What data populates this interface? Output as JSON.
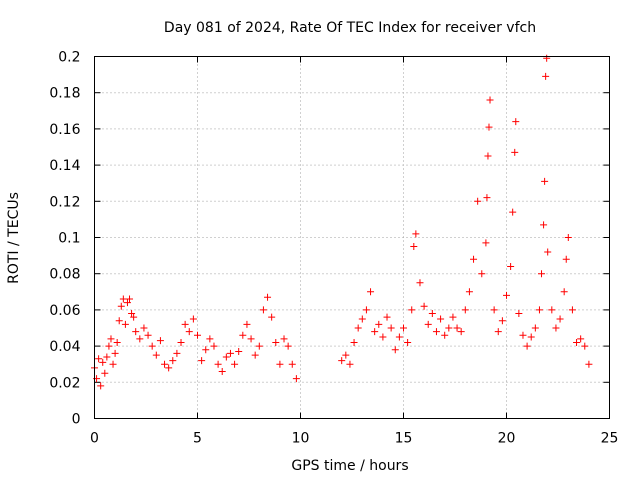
{
  "chart_data": {
    "type": "scatter",
    "title": "Day 081 of 2024, Rate Of TEC Index for receiver vfch",
    "xlabel": "GPS time / hours",
    "ylabel": "ROTI / TECUs",
    "xlim": [
      0,
      25
    ],
    "ylim": [
      0,
      0.2
    ],
    "xticks": [
      0,
      5,
      10,
      15,
      20,
      25
    ],
    "yticks": [
      0,
      0.02,
      0.04,
      0.06,
      0.08,
      0.1,
      0.12,
      0.14,
      0.16,
      0.18,
      0.2
    ],
    "xtick_labels": [
      "0",
      "5",
      "10",
      "15",
      "20",
      "25"
    ],
    "ytick_labels": [
      "0",
      "0.02",
      "0.04",
      "0.06",
      "0.08",
      "0.1",
      "0.12",
      "0.14",
      "0.16",
      "0.18",
      "0.2"
    ],
    "grid": true,
    "marker": "+",
    "color": "#ff0000",
    "series": [
      {
        "name": "ROTI",
        "points": [
          [
            0.0,
            0.028
          ],
          [
            0.1,
            0.022
          ],
          [
            0.2,
            0.033
          ],
          [
            0.3,
            0.018
          ],
          [
            0.4,
            0.031
          ],
          [
            0.5,
            0.025
          ],
          [
            0.6,
            0.034
          ],
          [
            0.7,
            0.04
          ],
          [
            0.8,
            0.044
          ],
          [
            0.9,
            0.03
          ],
          [
            1.0,
            0.036
          ],
          [
            1.1,
            0.042
          ],
          [
            1.2,
            0.054
          ],
          [
            1.3,
            0.062
          ],
          [
            1.4,
            0.066
          ],
          [
            1.5,
            0.052
          ],
          [
            1.6,
            0.064
          ],
          [
            1.7,
            0.066
          ],
          [
            1.8,
            0.058
          ],
          [
            1.9,
            0.056
          ],
          [
            2.0,
            0.048
          ],
          [
            2.2,
            0.044
          ],
          [
            2.4,
            0.05
          ],
          [
            2.6,
            0.046
          ],
          [
            2.8,
            0.04
          ],
          [
            3.0,
            0.035
          ],
          [
            3.2,
            0.043
          ],
          [
            3.4,
            0.03
          ],
          [
            3.6,
            0.028
          ],
          [
            3.8,
            0.032
          ],
          [
            4.0,
            0.036
          ],
          [
            4.2,
            0.042
          ],
          [
            4.4,
            0.052
          ],
          [
            4.6,
            0.048
          ],
          [
            4.8,
            0.055
          ],
          [
            5.0,
            0.046
          ],
          [
            5.2,
            0.032
          ],
          [
            5.4,
            0.038
          ],
          [
            5.6,
            0.044
          ],
          [
            5.8,
            0.04
          ],
          [
            6.0,
            0.03
          ],
          [
            6.2,
            0.026
          ],
          [
            6.4,
            0.034
          ],
          [
            6.6,
            0.036
          ],
          [
            6.8,
            0.03
          ],
          [
            7.0,
            0.037
          ],
          [
            7.2,
            0.046
          ],
          [
            7.4,
            0.052
          ],
          [
            7.6,
            0.044
          ],
          [
            7.8,
            0.035
          ],
          [
            8.0,
            0.04
          ],
          [
            8.2,
            0.06
          ],
          [
            8.4,
            0.067
          ],
          [
            8.6,
            0.056
          ],
          [
            8.8,
            0.042
          ],
          [
            9.0,
            0.03
          ],
          [
            9.2,
            0.044
          ],
          [
            9.4,
            0.04
          ],
          [
            9.6,
            0.03
          ],
          [
            9.8,
            0.022
          ],
          [
            12.0,
            0.032
          ],
          [
            12.2,
            0.035
          ],
          [
            12.4,
            0.03
          ],
          [
            12.6,
            0.042
          ],
          [
            12.8,
            0.05
          ],
          [
            13.0,
            0.055
          ],
          [
            13.2,
            0.06
          ],
          [
            13.4,
            0.07
          ],
          [
            13.6,
            0.048
          ],
          [
            13.8,
            0.052
          ],
          [
            14.0,
            0.045
          ],
          [
            14.2,
            0.056
          ],
          [
            14.4,
            0.05
          ],
          [
            14.6,
            0.038
          ],
          [
            14.8,
            0.045
          ],
          [
            15.0,
            0.05
          ],
          [
            15.2,
            0.042
          ],
          [
            15.4,
            0.06
          ],
          [
            15.5,
            0.095
          ],
          [
            15.6,
            0.102
          ],
          [
            15.8,
            0.075
          ],
          [
            16.0,
            0.062
          ],
          [
            16.2,
            0.052
          ],
          [
            16.4,
            0.058
          ],
          [
            16.6,
            0.048
          ],
          [
            16.8,
            0.055
          ],
          [
            17.0,
            0.046
          ],
          [
            17.2,
            0.05
          ],
          [
            17.4,
            0.056
          ],
          [
            17.6,
            0.05
          ],
          [
            17.8,
            0.048
          ],
          [
            18.0,
            0.06
          ],
          [
            18.2,
            0.07
          ],
          [
            18.4,
            0.088
          ],
          [
            18.6,
            0.12
          ],
          [
            18.8,
            0.08
          ],
          [
            19.0,
            0.097
          ],
          [
            19.05,
            0.122
          ],
          [
            19.1,
            0.145
          ],
          [
            19.15,
            0.161
          ],
          [
            19.2,
            0.176
          ],
          [
            19.4,
            0.06
          ],
          [
            19.6,
            0.048
          ],
          [
            19.8,
            0.054
          ],
          [
            20.0,
            0.068
          ],
          [
            20.2,
            0.084
          ],
          [
            20.3,
            0.114
          ],
          [
            20.4,
            0.147
          ],
          [
            20.45,
            0.164
          ],
          [
            20.6,
            0.058
          ],
          [
            20.8,
            0.046
          ],
          [
            21.0,
            0.04
          ],
          [
            21.2,
            0.045
          ],
          [
            21.4,
            0.05
          ],
          [
            21.6,
            0.06
          ],
          [
            21.7,
            0.08
          ],
          [
            21.8,
            0.107
          ],
          [
            21.85,
            0.131
          ],
          [
            21.9,
            0.189
          ],
          [
            21.95,
            0.199
          ],
          [
            22.0,
            0.092
          ],
          [
            22.2,
            0.06
          ],
          [
            22.4,
            0.05
          ],
          [
            22.6,
            0.055
          ],
          [
            22.8,
            0.07
          ],
          [
            22.9,
            0.088
          ],
          [
            23.0,
            0.1
          ],
          [
            23.2,
            0.06
          ],
          [
            23.4,
            0.042
          ],
          [
            23.6,
            0.044
          ],
          [
            23.8,
            0.04
          ],
          [
            24.0,
            0.03
          ]
        ]
      }
    ]
  }
}
